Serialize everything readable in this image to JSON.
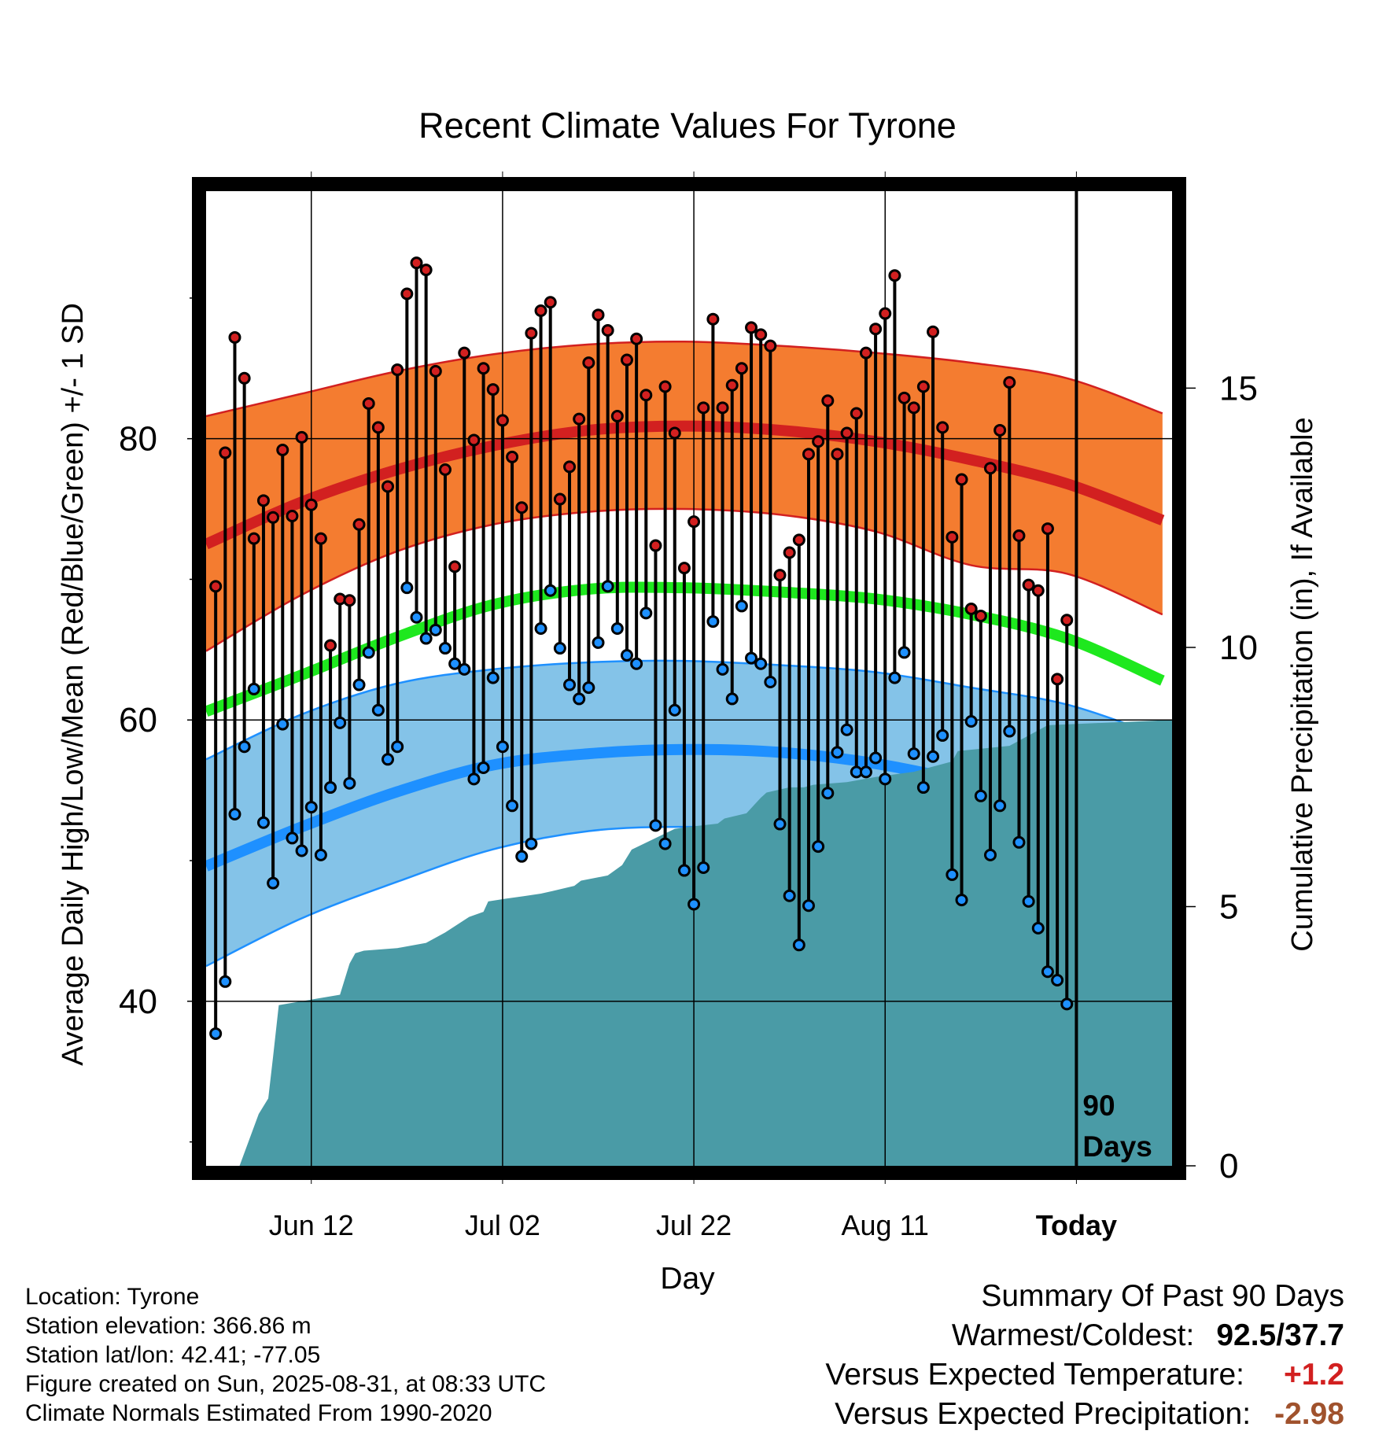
{
  "chart_data": {
    "type": "line",
    "title": "Recent Climate Values For Tyrone",
    "xlabel": "Day",
    "ylabel": "Average Daily High/Low/Mean (Red/Blue/Green) +/- 1 SD",
    "y2label": "Cumulative Precipitation (in), If Available",
    "x_ticks": [
      "Jun 12",
      "Jul 02",
      "Jul 22",
      "Aug 11",
      "Today"
    ],
    "x_tick_days": [
      11,
      31,
      51,
      71,
      91
    ],
    "xlim": [
      0,
      101
    ],
    "ylim": [
      28.3,
      97.6
    ],
    "y_ticks": [
      40,
      60,
      80
    ],
    "y_minor_ticks": [
      30,
      50,
      70,
      90
    ],
    "y2lim": [
      0,
      18.8
    ],
    "y2_ticks": [
      0,
      5,
      10,
      15
    ],
    "grid": true,
    "today_day": 91,
    "today_label": "90 Days",
    "normals": {
      "days": [
        0,
        10,
        20,
        30,
        40,
        50,
        60,
        70,
        80,
        90,
        100
      ],
      "high_mean": [
        72.5,
        75.5,
        77.8,
        79.5,
        80.6,
        80.9,
        80.6,
        79.8,
        78.5,
        76.8,
        74.2
      ],
      "high_upper": [
        81.6,
        83.2,
        84.8,
        86.0,
        86.7,
        86.9,
        86.6,
        86.1,
        85.4,
        84.3,
        81.8
      ],
      "high_lower": [
        64.9,
        68.9,
        72.0,
        73.9,
        74.8,
        75.0,
        74.6,
        73.4,
        71.0,
        70.4,
        67.5
      ],
      "mean": [
        60.6,
        63.2,
        65.9,
        68.2,
        69.3,
        69.4,
        69.1,
        68.6,
        67.5,
        65.8,
        62.8
      ],
      "low_mean": [
        49.6,
        52.4,
        54.9,
        56.8,
        57.6,
        57.9,
        57.7,
        56.9,
        55.5,
        53.7,
        51.4
      ],
      "low_upper": [
        57.2,
        60.4,
        62.6,
        63.6,
        64.1,
        64.2,
        63.9,
        63.4,
        62.3,
        61.1,
        58.8
      ],
      "low_lower": [
        42.5,
        45.9,
        48.5,
        50.8,
        52.1,
        52.4,
        52.1,
        51.2,
        48.6,
        46.5,
        44.5
      ]
    },
    "series": [
      {
        "name": "Daily High",
        "days": [
          1,
          2,
          3,
          4,
          5,
          6,
          7,
          8,
          9,
          10,
          11,
          12,
          13,
          14,
          15,
          16,
          17,
          18,
          19,
          20,
          21,
          22,
          23,
          24,
          25,
          26,
          27,
          28,
          29,
          30,
          31,
          32,
          33,
          34,
          35,
          36,
          37,
          38,
          39,
          40,
          41,
          42,
          43,
          44,
          45,
          46,
          47,
          48,
          49,
          50,
          51,
          52,
          53,
          54,
          55,
          56,
          57,
          58,
          59,
          60,
          61,
          62,
          63,
          64,
          65,
          66,
          67,
          68,
          69,
          70,
          71,
          72,
          73,
          74,
          75,
          76,
          77,
          78,
          79,
          80,
          81,
          82,
          83,
          84,
          85,
          86,
          87,
          88,
          89,
          90
        ],
        "values": [
          69.5,
          79.0,
          87.2,
          84.3,
          72.9,
          75.6,
          74.4,
          79.2,
          74.5,
          80.1,
          75.3,
          72.9,
          65.3,
          68.6,
          68.5,
          73.9,
          82.5,
          80.8,
          76.6,
          84.9,
          90.3,
          92.5,
          92.0,
          84.8,
          77.8,
          70.9,
          86.1,
          79.9,
          85.0,
          83.5,
          81.3,
          78.7,
          75.1,
          87.5,
          89.1,
          89.7,
          75.7,
          78.0,
          81.4,
          85.4,
          88.8,
          87.7,
          81.6,
          85.6,
          87.1,
          83.1,
          72.4,
          83.7,
          80.4,
          70.8,
          74.1,
          82.2,
          88.5,
          82.2,
          83.8,
          85.0,
          87.9,
          87.4,
          86.6,
          70.3,
          71.9,
          72.8,
          78.9,
          79.8,
          82.7,
          78.9,
          80.4,
          81.8,
          86.1,
          87.8,
          88.9,
          91.6,
          82.9,
          82.2,
          83.7,
          87.6,
          80.8,
          73.0,
          77.1,
          67.9,
          67.4,
          77.9,
          80.6,
          84.0,
          73.1,
          69.6,
          69.2,
          73.6,
          62.9,
          67.1
        ]
      },
      {
        "name": "Daily Low",
        "days": [
          1,
          2,
          3,
          4,
          5,
          6,
          7,
          8,
          9,
          10,
          11,
          12,
          13,
          14,
          15,
          16,
          17,
          18,
          19,
          20,
          21,
          22,
          23,
          24,
          25,
          26,
          27,
          28,
          29,
          30,
          31,
          32,
          33,
          34,
          35,
          36,
          37,
          38,
          39,
          40,
          41,
          42,
          43,
          44,
          45,
          46,
          47,
          48,
          49,
          50,
          51,
          52,
          53,
          54,
          55,
          56,
          57,
          58,
          59,
          60,
          61,
          62,
          63,
          64,
          65,
          66,
          67,
          68,
          69,
          70,
          71,
          72,
          73,
          74,
          75,
          76,
          77,
          78,
          79,
          80,
          81,
          82,
          83,
          84,
          85,
          86,
          87,
          88,
          89,
          90
        ],
        "values": [
          37.7,
          41.4,
          53.3,
          58.1,
          62.2,
          52.7,
          48.4,
          59.7,
          51.6,
          50.7,
          53.8,
          50.4,
          55.2,
          59.8,
          55.5,
          62.5,
          64.8,
          60.7,
          57.2,
          58.1,
          69.4,
          67.3,
          65.8,
          66.4,
          65.1,
          64.0,
          63.6,
          55.8,
          56.6,
          63.0,
          58.1,
          53.9,
          50.3,
          51.2,
          66.5,
          69.2,
          65.1,
          62.5,
          61.5,
          62.3,
          65.5,
          69.5,
          66.5,
          64.6,
          64.0,
          67.6,
          52.5,
          51.2,
          60.7,
          49.3,
          46.9,
          49.5,
          67.0,
          63.6,
          61.5,
          68.1,
          64.4,
          64.0,
          62.7,
          52.6,
          47.5,
          44.0,
          46.8,
          51.0,
          54.8,
          57.7,
          59.3,
          56.3,
          56.3,
          57.3,
          55.8,
          63.0,
          64.8,
          57.6,
          55.2,
          57.4,
          58.9,
          49.0,
          47.2,
          59.9,
          54.6,
          50.4,
          53.9,
          59.2,
          51.3,
          47.1,
          45.2,
          42.1,
          41.5,
          39.8
        ]
      }
    ],
    "precip": {
      "name": "Cumulative Precipitation",
      "days": [
        0,
        3.5,
        5.5,
        6.5,
        7.0,
        7.6,
        14.0,
        15.0,
        15.6,
        16.5,
        20.0,
        23.0,
        25.0,
        27.5,
        29.0,
        29.5,
        31.2,
        33.2,
        35.0,
        36.2,
        38.5,
        39.2,
        42.0,
        43.5,
        44.5,
        49.0,
        51.0,
        53.5,
        54.2,
        56.5,
        58.0,
        58.6,
        61.0,
        62.5,
        63.5,
        67.0,
        70.0,
        74.0,
        76.0,
        78.0,
        78.6,
        84.0,
        88.0,
        101
      ],
      "values": [
        0,
        0,
        1.0,
        1.3,
        2.1,
        3.1,
        3.3,
        3.9,
        4.1,
        4.15,
        4.2,
        4.3,
        4.5,
        4.8,
        4.9,
        5.1,
        5.15,
        5.2,
        5.25,
        5.3,
        5.4,
        5.5,
        5.6,
        5.8,
        6.1,
        6.5,
        6.55,
        6.6,
        6.7,
        6.8,
        7.1,
        7.2,
        7.3,
        7.3,
        7.35,
        7.4,
        7.5,
        7.6,
        7.7,
        7.8,
        8.0,
        8.1,
        8.5,
        8.6
      ]
    }
  },
  "info": {
    "location": "Location: Tyrone",
    "elevation": "Station elevation: 366.86 m",
    "latlon": "Station lat/lon: 42.41; -77.05",
    "created": "Figure created on Sun, 2025-08-31, at 08:33 UTC",
    "normals_note": "Climate Normals Estimated From 1990-2020"
  },
  "summary": {
    "title": "Summary Of Past 90 Days",
    "warmest_label": "Warmest/Coldest:",
    "warmest_value": "92.5/37.7",
    "temp_label": "Versus Expected Temperature:",
    "temp_value": "+1.2",
    "temp_color": "#d22020",
    "precip_label": "Versus Expected Precipitation:",
    "precip_value": "-2.98",
    "precip_color": "#a0522d"
  },
  "colors": {
    "high_band": "#f47c30",
    "high_line": "#d22020",
    "mean_line": "#1ee81e",
    "low_band": "#84c3e8",
    "low_line": "#1e90ff",
    "precip_fill": "#4a9ba6",
    "high_marker": "#d22020",
    "low_marker": "#1e90ff"
  }
}
